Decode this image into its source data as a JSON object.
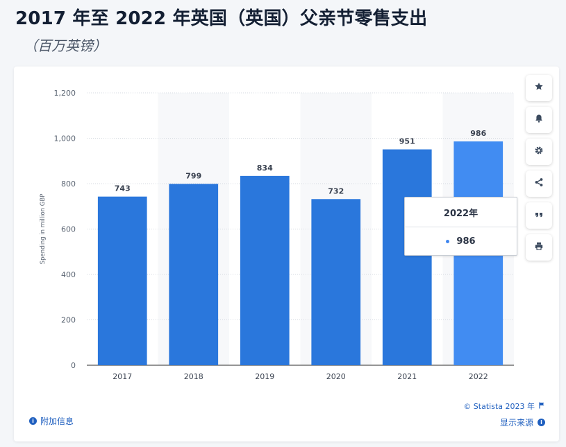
{
  "header": {
    "title": "2017 年至 2022 年英国（英国）父亲节零售支出",
    "subtitle": "（百万英镑）"
  },
  "toolbar": {
    "buttons": [
      {
        "name": "favorite-button",
        "icon": "star-icon"
      },
      {
        "name": "notification-button",
        "icon": "bell-icon"
      },
      {
        "name": "settings-button",
        "icon": "gear-icon"
      },
      {
        "name": "share-button",
        "icon": "share-icon"
      },
      {
        "name": "cite-button",
        "icon": "quote-icon"
      },
      {
        "name": "print-button",
        "icon": "print-icon"
      }
    ]
  },
  "tooltip": {
    "title": "2022年",
    "value": "986"
  },
  "footer": {
    "additional_info": "附加信息",
    "credit": "© Statista 2023 年",
    "show_source": "显示来源"
  },
  "colors": {
    "bar": "#2a77dc",
    "bar_highlight": "#418cf2"
  },
  "chart_data": {
    "type": "bar",
    "categories": [
      "2017",
      "2018",
      "2019",
      "2020",
      "2021",
      "2022"
    ],
    "values": [
      743,
      799,
      834,
      732,
      951,
      986
    ],
    "title": "2017 年至 2022 年英国（英国）父亲节零售支出",
    "subtitle": "（百万英镑）",
    "xlabel": "",
    "ylabel": "Spending in million GBP",
    "ylim": [
      0,
      1200
    ],
    "yticks": [
      0,
      200,
      400,
      600,
      800,
      1000,
      1200
    ],
    "ytick_labels": [
      "0",
      "200",
      "400",
      "600",
      "800",
      "1,000",
      "1,200"
    ],
    "grid": true,
    "legend": "none",
    "highlighted_category": "2022"
  }
}
